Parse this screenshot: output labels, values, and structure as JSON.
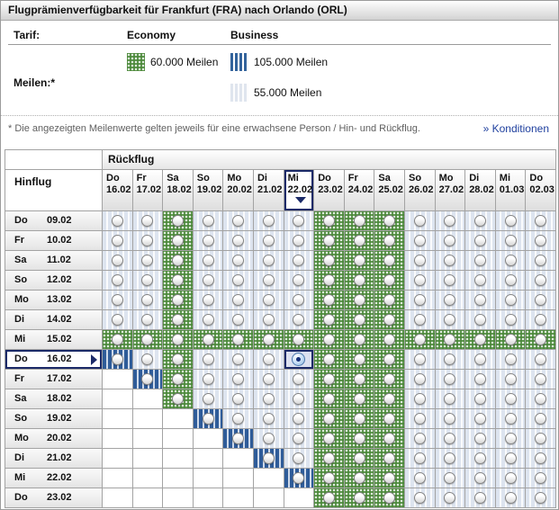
{
  "title": "Flugprämienverfügbarkeit für Frankfurt (FRA) nach Orlando (ORL)",
  "legend": {
    "tarif_label": "Tarif:",
    "economy_label": "Economy",
    "business_label": "Business",
    "meilen_label": "Meilen:*",
    "economy_miles": "60.000 Meilen",
    "business_miles_high": "105.000 Meilen",
    "business_miles_low": "55.000 Meilen"
  },
  "footnote": {
    "text": "* Die angezeigten Meilenwerte gelten jeweils für eine erwachsene Person / Hin- und Rückflug.",
    "link": "» Konditionen"
  },
  "colors": {
    "economy_green": "#4d8a3c",
    "business_dark_blue": "#2f5c99",
    "business_light_blue": "#dde4ef",
    "selection_navy": "#1b2a68",
    "link_blue": "#1e3f9e"
  },
  "grid": {
    "return_label": "Rückflug",
    "outbound_label": "Hinflug",
    "columns": [
      {
        "day": "Do",
        "date": "16.02"
      },
      {
        "day": "Fr",
        "date": "17.02"
      },
      {
        "day": "Sa",
        "date": "18.02"
      },
      {
        "day": "So",
        "date": "19.02"
      },
      {
        "day": "Mo",
        "date": "20.02"
      },
      {
        "day": "Di",
        "date": "21.02"
      },
      {
        "day": "Mi",
        "date": "22.02"
      },
      {
        "day": "Do",
        "date": "23.02"
      },
      {
        "day": "Fr",
        "date": "24.02"
      },
      {
        "day": "Sa",
        "date": "25.02"
      },
      {
        "day": "So",
        "date": "26.02"
      },
      {
        "day": "Mo",
        "date": "27.02"
      },
      {
        "day": "Di",
        "date": "28.02"
      },
      {
        "day": "Mi",
        "date": "01.03"
      },
      {
        "day": "Do",
        "date": "02.03"
      }
    ],
    "rows": [
      {
        "day": "Do",
        "date": "09.02"
      },
      {
        "day": "Fr",
        "date": "10.02"
      },
      {
        "day": "Sa",
        "date": "11.02"
      },
      {
        "day": "So",
        "date": "12.02"
      },
      {
        "day": "Mo",
        "date": "13.02"
      },
      {
        "day": "Di",
        "date": "14.02"
      },
      {
        "day": "Mi",
        "date": "15.02"
      },
      {
        "day": "Do",
        "date": "16.02"
      },
      {
        "day": "Fr",
        "date": "17.02"
      },
      {
        "day": "Sa",
        "date": "18.02"
      },
      {
        "day": "So",
        "date": "19.02"
      },
      {
        "day": "Mo",
        "date": "20.02"
      },
      {
        "day": "Di",
        "date": "21.02"
      },
      {
        "day": "Mi",
        "date": "22.02"
      },
      {
        "day": "Do",
        "date": "23.02"
      }
    ],
    "selected_column_index": 6,
    "selected_row_index": 7,
    "cell_codes": {
      "G": "economy-60000-meilen",
      "B": "business-105000-meilen",
      "L": "business-55000-meilen",
      "E": "not-available",
      "S": "selected-business-55000-meilen"
    },
    "cells": [
      "LLGLLLLGGGLLLLL",
      "LLGLLLLGGGLLLLL",
      "LLGLLLLGGGLLLLL",
      "LLGLLLLGGGLLLLL",
      "LLGLLLLGGGLLLLL",
      "LLGLLLLGGGLLLLL",
      "GGGGGGGGGGGGGGG",
      "BLGLLLSGGGLLLLL",
      "EBGLLLLGGGLLLLL",
      "EEGLLLLGGGLLLLL",
      "EEEBLLLGGGLLLLL",
      "EEEEBLLGGGLLLLL",
      "EEEEEBLGGGLLLLL",
      "EEEEEEBGGGLLLLL",
      "EEEEEEEGGGLLLLL"
    ]
  }
}
